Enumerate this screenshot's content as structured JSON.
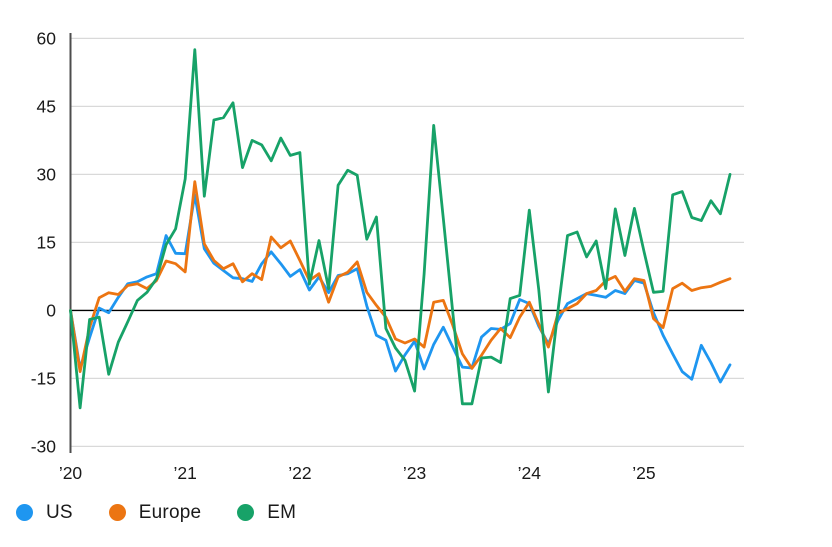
{
  "chart_data": {
    "type": "line",
    "title": "",
    "xlabel": "",
    "ylabel": "",
    "x_frequency": "monthly",
    "x_start": "Jan 2020",
    "x_end": "Oct 2025",
    "x_tick_labels": [
      "’20",
      "’21",
      "’22",
      "’23",
      "’24",
      "’25"
    ],
    "y_ticks": [
      60,
      45,
      30,
      15,
      0,
      -15,
      -30
    ],
    "ylim": [
      -30,
      60
    ],
    "grid": "horizontal",
    "legend_position": "bottom-left",
    "zero_line": true,
    "series": [
      {
        "name": "US",
        "color": "#1E96F0",
        "values": [
          0,
          -12.8,
          -6,
          0.5,
          -0.5,
          2.9,
          5.9,
          6.3,
          7.4,
          8.1,
          16.5,
          12.6,
          12.5,
          25.5,
          13.6,
          10.4,
          8.8,
          7.2,
          7.0,
          6.4,
          10.3,
          12.9,
          10.3,
          7.5,
          9.0,
          4.5,
          7.4,
          3.9,
          7.7,
          8.1,
          9.2,
          1.0,
          -5.5,
          -6.6,
          -13.4,
          -9.8,
          -6.8,
          -12.9,
          -7.5,
          -3.7,
          -8.1,
          -12.5,
          -12.7,
          -5.9,
          -4.0,
          -4.2,
          -2.9,
          2.4,
          1.5,
          -3.5,
          -7.4,
          -2.2,
          1.5,
          2.6,
          3.7,
          3.3,
          2.9,
          4.4,
          3.7,
          6.6,
          6.0,
          -0.5,
          -5.5,
          -9.6,
          -13.5,
          -15.2,
          -7.7,
          -11.5,
          -15.8,
          -12.0
        ]
      },
      {
        "name": "Europe",
        "color": "#EC7512",
        "values": [
          0,
          -13.5,
          -3.8,
          2.8,
          3.9,
          3.5,
          5.5,
          5.9,
          4.8,
          6.6,
          10.9,
          10.3,
          8.5,
          28.4,
          14.7,
          11.0,
          9.2,
          10.3,
          6.3,
          8.1,
          6.8,
          16.2,
          13.8,
          15.3,
          11.0,
          6.6,
          8.1,
          1.8,
          7.4,
          8.4,
          10.7,
          4.0,
          1.1,
          -1.5,
          -6.3,
          -7.2,
          -6.3,
          -8.1,
          1.8,
          2.2,
          -3.3,
          -9.6,
          -12.8,
          -9.9,
          -6.6,
          -4.0,
          -6.0,
          -1.5,
          1.8,
          -3.0,
          -8.1,
          -0.7,
          0.4,
          1.5,
          3.7,
          4.4,
          6.5,
          7.5,
          4.2,
          7.0,
          6.6,
          -1.8,
          -3.8,
          4.8,
          6.0,
          4.4,
          5.0,
          5.3,
          6.2,
          7.0
        ]
      },
      {
        "name": "EM",
        "color": "#17A268",
        "values": [
          0,
          -21.5,
          -2.0,
          -1.5,
          -14.1,
          -7.0,
          -2.5,
          2.2,
          4.0,
          7.0,
          14.5,
          18.0,
          29.0,
          57.5,
          25.2,
          42.0,
          42.5,
          45.8,
          31.5,
          37.5,
          36.5,
          33.0,
          38.0,
          34.2,
          34.8,
          5.8,
          15.4,
          4.8,
          27.6,
          30.9,
          29.8,
          15.7,
          20.6,
          -4.0,
          -8.3,
          -11.0,
          -17.8,
          8.0,
          40.8,
          20.3,
          -0.5,
          -20.6,
          -20.6,
          -10.5,
          -10.3,
          -11.5,
          2.6,
          3.3,
          22.1,
          4.5,
          -18.0,
          0.0,
          16.5,
          17.3,
          11.8,
          15.3,
          4.8,
          22.4,
          12.1,
          22.5,
          13.0,
          4.0,
          4.2,
          25.5,
          26.2,
          20.5,
          19.8,
          24.2,
          21.3,
          30.0
        ]
      }
    ],
    "colors": {
      "gridline": "#D9D9D9",
      "zero_line": "#000000",
      "axis_line": "#4D4D4D",
      "tick_text": "#1A1A1A"
    }
  },
  "legend": {
    "items": [
      {
        "label": "US"
      },
      {
        "label": "Europe"
      },
      {
        "label": "EM"
      }
    ]
  }
}
